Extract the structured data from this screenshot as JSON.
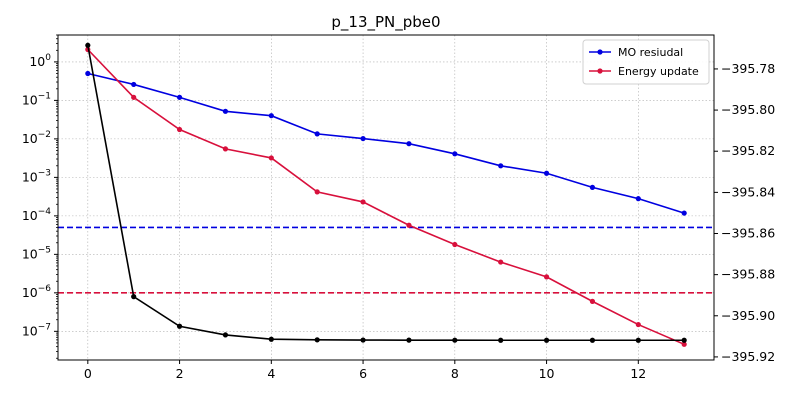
{
  "chart_data": {
    "type": "line",
    "title": "p_13_PN_pbe0",
    "xlabel": "",
    "ylabel_left": "",
    "ylabel_right": "",
    "xlim": [
      -0.65,
      13.65
    ],
    "xticks": [
      0,
      2,
      4,
      6,
      8,
      10,
      12
    ],
    "x": [
      0,
      1,
      2,
      3,
      4,
      5,
      6,
      7,
      8,
      9,
      10,
      11,
      12,
      13
    ],
    "left_axis": {
      "scale": "log",
      "ylim": [
        1.8e-08,
        5.0
      ],
      "tick_exponents": [
        0,
        -1,
        -2,
        -3,
        -4,
        -5,
        -6,
        -7
      ],
      "tick_labels": [
        "10",
        "10",
        "10",
        "10",
        "10",
        "10",
        "10",
        "10"
      ]
    },
    "right_axis": {
      "scale": "linear",
      "ylim": [
        -395.9215,
        -395.7635
      ],
      "ticks": [
        -395.78,
        -395.8,
        -395.82,
        -395.84,
        -395.86,
        -395.88,
        -395.9,
        -395.92
      ],
      "tick_labels": [
        "−395.78",
        "−395.80",
        "−395.82",
        "−395.84",
        "−395.86",
        "−395.88",
        "−395.90",
        "−395.92"
      ]
    },
    "series": [
      {
        "name": "MO resiudal",
        "axis": "left",
        "color": "#0000e0",
        "marker": "dot",
        "values": [
          0.5,
          0.26,
          0.12,
          0.052,
          0.04,
          0.0135,
          0.0102,
          0.0075,
          0.0041,
          0.002,
          0.00128,
          0.00055,
          0.00028,
          0.000118
        ]
      },
      {
        "name": "Energy update",
        "axis": "left",
        "color": "#d8103c",
        "marker": "dot",
        "values": [
          2.1,
          0.12,
          0.0175,
          0.0055,
          0.0032,
          0.00042,
          0.00023,
          5.7e-05,
          1.8e-05,
          6.3e-06,
          2.6e-06,
          6e-07,
          1.5e-07,
          4.6e-08
        ]
      },
      {
        "axis": "right",
        "color": "#000000",
        "marker": "dot",
        "values": [
          -395.7685,
          -395.8907,
          -395.9051,
          -395.9093,
          -395.9114,
          -395.9117,
          -395.9118,
          -395.91185,
          -395.91188,
          -395.9119,
          -395.9119,
          -395.9119,
          -395.9119,
          -395.9119
        ]
      }
    ],
    "reference_lines": [
      {
        "axis": "left",
        "value": 5e-05,
        "color": "#0000e0",
        "style": "dashed"
      },
      {
        "axis": "left",
        "value": 1e-06,
        "color": "#d8103c",
        "style": "dashed"
      }
    ],
    "grid": true,
    "legend": {
      "position": "top-right",
      "entries": [
        "MO resiudal",
        "Energy update"
      ]
    }
  }
}
